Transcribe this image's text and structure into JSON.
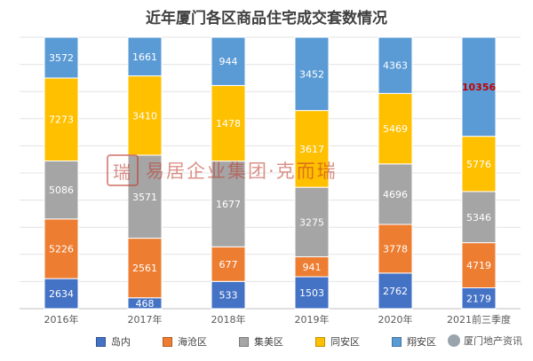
{
  "chart_data": {
    "type": "bar",
    "stacked": true,
    "title": "近年厦门各区商品住宅成交套数情况",
    "categories": [
      "2016年",
      "2017年",
      "2018年",
      "2019年",
      "2020年",
      "2021前三季度"
    ],
    "series": [
      {
        "name": "岛内",
        "color": "#4472c4",
        "values": [
          2634,
          468,
          533,
          1503,
          2762,
          2179
        ]
      },
      {
        "name": "海沧区",
        "color": "#ed7d31",
        "values": [
          5226,
          2561,
          677,
          941,
          3778,
          4719
        ]
      },
      {
        "name": "集美区",
        "color": "#a5a5a5",
        "values": [
          5086,
          3571,
          1677,
          3275,
          4696,
          5346
        ]
      },
      {
        "name": "同安区",
        "color": "#ffc000",
        "values": [
          7273,
          3410,
          1478,
          3617,
          5469,
          5776
        ]
      },
      {
        "name": "翔安区",
        "color": "#5b9bd5",
        "values": [
          3572,
          1661,
          944,
          3452,
          4363,
          10356
        ]
      }
    ],
    "normalized": true,
    "grid": true,
    "legend_position": "bottom",
    "highlight": {
      "category_index": 5,
      "series_index": 4,
      "color": "#c00000"
    }
  },
  "watermark": {
    "logo": "瑞",
    "text": "易居企业集团·克而瑞"
  },
  "credit": {
    "text": "厦门地产资讯",
    "icon": "wechat-icon"
  }
}
